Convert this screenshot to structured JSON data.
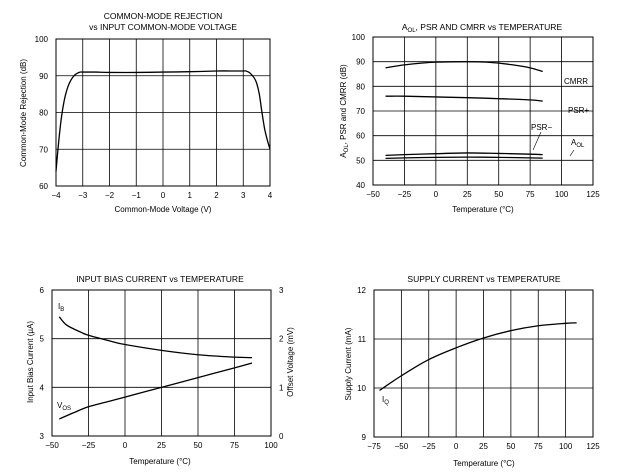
{
  "chart_data": [
    {
      "id": "cmr",
      "type": "line",
      "title": [
        "COMMON-MODE REJECTION",
        "vs INPUT COMMON-MODE VOLTAGE"
      ],
      "xlabel": "Common-Mode Voltage (V)",
      "ylabel": "Common-Mode Rejection (dB)",
      "xlim": [
        -4,
        4
      ],
      "ylim": [
        60,
        100
      ],
      "xticks": [
        -4,
        -3,
        -2,
        -1,
        0,
        1,
        2,
        3,
        4
      ],
      "xtick_labels": [
        "−4",
        "−3",
        "−2",
        "−1",
        "0",
        "1",
        "2",
        "3",
        "4"
      ],
      "yticks": [
        60,
        70,
        80,
        90,
        100
      ],
      "ytick_labels": [
        "60",
        "70",
        "80",
        "90",
        "100"
      ],
      "series": [
        {
          "name": "CMR",
          "x": [
            -4.0,
            -3.9,
            -3.8,
            -3.7,
            -3.6,
            -3.5,
            -3.4,
            -3.3,
            -3.2,
            -3.1,
            -3.0,
            -2.5,
            -2.0,
            -1.0,
            0.0,
            1.0,
            2.0,
            2.5,
            3.0,
            3.1,
            3.2,
            3.3,
            3.4,
            3.5,
            3.6,
            3.7,
            3.8,
            3.9,
            4.0
          ],
          "y": [
            64.0,
            72.0,
            78.5,
            83.0,
            86.0,
            88.0,
            89.3,
            90.2,
            90.7,
            91.0,
            91.0,
            91.0,
            90.9,
            90.9,
            91.0,
            91.1,
            91.3,
            91.3,
            91.3,
            91.3,
            91.0,
            90.4,
            89.5,
            88.0,
            85.0,
            80.0,
            75.5,
            72.5,
            70.0
          ]
        }
      ]
    },
    {
      "id": "temp",
      "type": "line",
      "title": [
        "A",
        "OL",
        ", PSR AND CMRR vs TEMPERATURE"
      ],
      "xlabel": "Temperature (°C)",
      "ylabel": [
        "A",
        "OL",
        ", PSR and CMRR (dB)"
      ],
      "xlim": [
        -50,
        125
      ],
      "ylim": [
        40,
        100
      ],
      "xticks": [
        -50,
        -25,
        0,
        25,
        50,
        75,
        100,
        125
      ],
      "xtick_labels": [
        "−50",
        "−25",
        "0",
        "25",
        "50",
        "75",
        "100",
        "125"
      ],
      "yticks": [
        40,
        50,
        60,
        70,
        80,
        90,
        100
      ],
      "ytick_labels": [
        "40",
        "50",
        "60",
        "70",
        "80",
        "90",
        "100"
      ],
      "series": [
        {
          "name": "CMRR",
          "x": [
            -40,
            -25,
            0,
            25,
            40,
            60,
            75,
            85
          ],
          "y": [
            87.5,
            88.7,
            89.8,
            90.0,
            89.8,
            88.8,
            87.5,
            86.0
          ]
        },
        {
          "name": "PSR+",
          "x": [
            -40,
            -25,
            0,
            25,
            50,
            75,
            85
          ],
          "y": [
            76.0,
            76.0,
            75.7,
            75.4,
            75.0,
            74.5,
            74.0
          ]
        },
        {
          "name": "PSR−",
          "x": [
            -40,
            -25,
            0,
            25,
            50,
            75,
            85
          ],
          "y": [
            52.0,
            52.3,
            52.7,
            53.0,
            52.8,
            52.5,
            52.3
          ]
        },
        {
          "name": "AOL",
          "x": [
            -40,
            -25,
            0,
            25,
            50,
            75,
            85
          ],
          "y": [
            50.8,
            51.0,
            51.2,
            51.3,
            51.2,
            51.0,
            50.9
          ]
        }
      ],
      "annotations": [
        {
          "text": "CMRR"
        },
        {
          "text": "PSR+"
        },
        {
          "text": "PSR−"
        },
        {
          "text": [
            "A",
            "OL"
          ]
        }
      ]
    },
    {
      "id": "bias",
      "type": "line",
      "title": [
        "INPUT BIAS CURRENT vs TEMPERATURE"
      ],
      "xlabel": "Temperature (°C)",
      "ylabel": "Input Bias Current (µA)",
      "ylabel2": "Offset Voltage (mV)",
      "xlim": [
        -50,
        100
      ],
      "ylim": [
        3,
        6
      ],
      "ylim2": [
        0,
        3
      ],
      "xticks": [
        -50,
        -25,
        0,
        25,
        50,
        75,
        100
      ],
      "xtick_labels": [
        "−50",
        "−25",
        "0",
        "25",
        "50",
        "75",
        "100"
      ],
      "yticks": [
        3,
        4,
        5,
        6
      ],
      "ytick_labels": [
        "3",
        "4",
        "5",
        "6"
      ],
      "yticks2": [
        0,
        1,
        2,
        3
      ],
      "ytick_labels2": [
        "0",
        "1",
        "2",
        "3"
      ],
      "series": [
        {
          "name": "IB",
          "axis": "left",
          "x": [
            -45,
            -40,
            -30,
            -25,
            -10,
            0,
            25,
            50,
            75,
            87
          ],
          "y": [
            5.45,
            5.28,
            5.13,
            5.07,
            4.95,
            4.88,
            4.76,
            4.67,
            4.62,
            4.61
          ]
        },
        {
          "name": "VOS",
          "axis": "right",
          "x": [
            -45,
            -35,
            -25,
            -10,
            0,
            25,
            50,
            75,
            87
          ],
          "y": [
            0.35,
            0.48,
            0.6,
            0.72,
            0.8,
            1.0,
            1.2,
            1.4,
            1.5
          ]
        }
      ],
      "annotations": [
        {
          "text": [
            "I",
            "B"
          ]
        },
        {
          "text": [
            "V",
            "OS"
          ]
        }
      ]
    },
    {
      "id": "supply",
      "type": "line",
      "title": [
        "SUPPLY CURRENT vs TEMPERATURE"
      ],
      "xlabel": "Temperature (°C)",
      "ylabel": "Supply Current (mA)",
      "xlim": [
        -75,
        125
      ],
      "ylim": [
        9,
        12
      ],
      "xticks": [
        -75,
        -50,
        -25,
        0,
        25,
        50,
        75,
        100,
        125
      ],
      "xtick_labels": [
        "−75",
        "−50",
        "−25",
        "0",
        "25",
        "50",
        "75",
        "100",
        "125"
      ],
      "yticks": [
        9,
        10,
        11,
        12
      ],
      "ytick_labels": [
        "9",
        "10",
        "11",
        "12"
      ],
      "series": [
        {
          "name": "IQ",
          "x": [
            -70,
            -50,
            -25,
            0,
            25,
            50,
            75,
            100,
            110
          ],
          "y": [
            9.95,
            10.25,
            10.58,
            10.82,
            11.02,
            11.17,
            11.27,
            11.32,
            11.33
          ]
        }
      ],
      "annotations": [
        {
          "text": [
            "I",
            "Q"
          ]
        }
      ]
    }
  ]
}
